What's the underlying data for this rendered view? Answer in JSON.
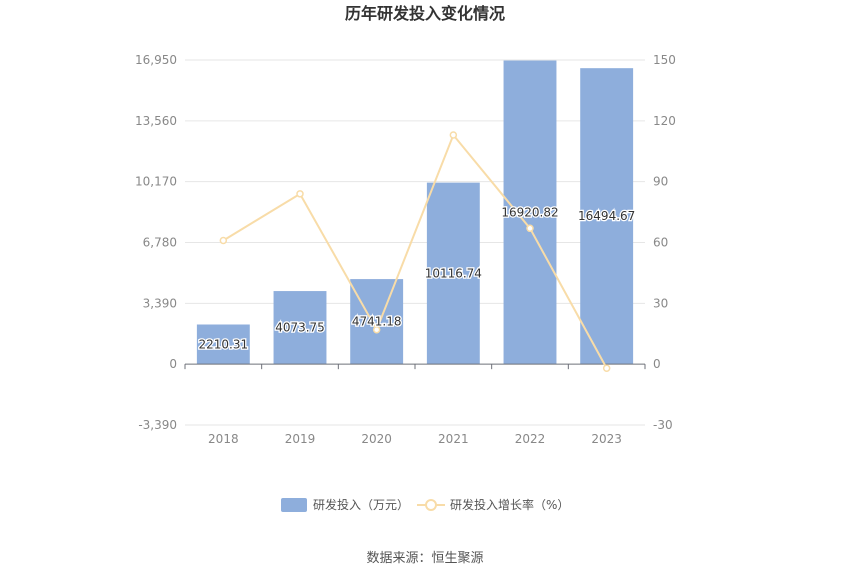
{
  "chart_data": {
    "type": "bar",
    "title": "历年研发投入变化情况",
    "categories": [
      "2018",
      "2019",
      "2020",
      "2021",
      "2022",
      "2023"
    ],
    "series": [
      {
        "name": "研发投入（万元）",
        "type": "bar",
        "axis": "left",
        "color": "#8eaedc",
        "values": [
          2210.31,
          4073.75,
          4741.18,
          10116.74,
          16920.82,
          16494.67
        ],
        "labels": [
          "2210.31",
          "4073.75",
          "4741.18",
          "10116.74",
          "16920.82",
          "16494.67"
        ]
      },
      {
        "name": "研发投入增长率（%）",
        "type": "line",
        "axis": "right",
        "color": "#f8dca8",
        "values": [
          61,
          84,
          17,
          113,
          67,
          -2
        ]
      }
    ],
    "y_left": {
      "ylim": [
        -3390,
        16950
      ],
      "ticks": [
        "16,950",
        "13,560",
        "10,170",
        "6,780",
        "3,390",
        "0",
        "-3,390"
      ],
      "tick_values": [
        16950,
        13560,
        10170,
        6780,
        3390,
        0,
        -3390
      ]
    },
    "y_right": {
      "ylim": [
        -30,
        150
      ],
      "ticks": [
        "150",
        "120",
        "90",
        "60",
        "30",
        "0",
        "-30"
      ],
      "tick_values": [
        150,
        120,
        90,
        60,
        30,
        0,
        -30
      ]
    },
    "grid": true,
    "legend_position": "bottom"
  },
  "source_text": "数据来源：恒生聚源"
}
